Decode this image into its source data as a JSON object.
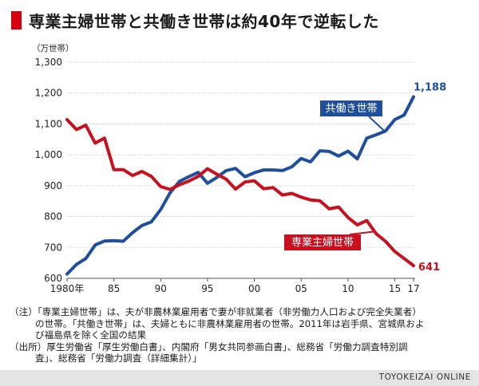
{
  "title": "専業主婦世帯と共働き世帯は約40年で逆転した",
  "colors": {
    "accent": "#d7000f",
    "dual": "#1f4e9c",
    "single": "#c8101e"
  },
  "chart_data": {
    "type": "line",
    "title": "専業主婦世帯と共働き世帯は約40年で逆転した",
    "ylabel": "（万世帯）",
    "ylim": [
      600,
      1300
    ],
    "yticks": [
      600,
      700,
      800,
      900,
      "1,000",
      "1,100",
      "1,200",
      "1,300"
    ],
    "xlim": [
      1980,
      2017
    ],
    "xticks": [
      {
        "year": 1980,
        "label": "1980年"
      },
      {
        "year": 1985,
        "label": "85"
      },
      {
        "year": 1990,
        "label": "90"
      },
      {
        "year": 1995,
        "label": "95"
      },
      {
        "year": 2000,
        "label": "00"
      },
      {
        "year": 2005,
        "label": "05"
      },
      {
        "year": 2010,
        "label": "10"
      },
      {
        "year": 2015,
        "label": "15"
      },
      {
        "year": 2017,
        "label": "17"
      }
    ],
    "grid": true,
    "x": [
      1980,
      1981,
      1982,
      1983,
      1984,
      1985,
      1986,
      1987,
      1988,
      1989,
      1990,
      1991,
      1992,
      1993,
      1994,
      1995,
      1996,
      1997,
      1998,
      1999,
      2000,
      2001,
      2002,
      2003,
      2004,
      2005,
      2006,
      2007,
      2008,
      2009,
      2010,
      2011,
      2012,
      2013,
      2014,
      2015,
      2016,
      2017
    ],
    "series": [
      {
        "name": "共働き世帯",
        "color": "#1f4e9c",
        "values": [
          614,
          645,
          664,
          708,
          721,
          722,
          720,
          748,
          771,
          783,
          823,
          877,
          914,
          929,
          943,
          908,
          927,
          949,
          956,
          929,
          942,
          951,
          951,
          949,
          961,
          988,
          977,
          1013,
          1011,
          996,
          1012,
          987,
          1054,
          1065,
          1077,
          1114,
          1129,
          1188
        ],
        "end_label": "1,188"
      },
      {
        "name": "専業主婦世帯",
        "color": "#c8101e",
        "values": [
          1114,
          1082,
          1096,
          1038,
          1054,
          952,
          952,
          933,
          946,
          930,
          897,
          888,
          903,
          915,
          930,
          955,
          937,
          921,
          889,
          912,
          916,
          890,
          894,
          870,
          875,
          863,
          854,
          851,
          825,
          831,
          797,
          773,
          787,
          745,
          720,
          687,
          664,
          641
        ],
        "end_label": "641"
      }
    ]
  },
  "notes": [
    "（注）「専業主婦世帯」は、夫が非農林業雇用者で妻が非就業者（非労働力人口および完全失業者）",
    "の世帯。「共働き世帯」は、夫婦ともに非農林業雇用者の世帯。2011年は岩手県、宮城県およ",
    "び福島県を除く全国の結果",
    "（出所）厚生労働省「厚生労働白書」、内閣府「男女共同参画白書」、総務省「労働力調査特別調",
    "査」、総務省「労働力調査（詳細集計）」"
  ],
  "credit": "TOYOKEIZAI ONLINE"
}
